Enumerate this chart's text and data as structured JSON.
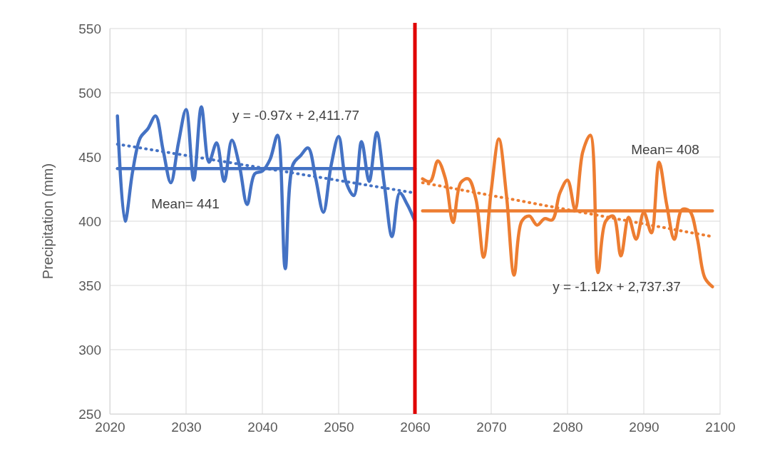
{
  "chart_data": {
    "type": "line",
    "ylabel": "Precipitation (mm)",
    "xlim": [
      2020,
      2100
    ],
    "ylim": [
      250,
      550
    ],
    "xticks": [
      2020,
      2030,
      2040,
      2050,
      2060,
      2070,
      2080,
      2090,
      2100
    ],
    "yticks": [
      250,
      300,
      350,
      400,
      450,
      500,
      550
    ],
    "grid": true,
    "marker": "none",
    "line_style": "solid",
    "series": [
      {
        "color": "#4472c4",
        "x": [
          2021,
          2022,
          2023,
          2024,
          2025,
          2026,
          2027,
          2028,
          2029,
          2030,
          2031,
          2032,
          2033,
          2034,
          2035,
          2036,
          2037,
          2038,
          2039,
          2040,
          2041,
          2042,
          2043,
          2044,
          2045,
          2046,
          2047,
          2048,
          2049,
          2050,
          2051,
          2052,
          2053,
          2054,
          2055,
          2056,
          2057,
          2058,
          2059,
          2060
        ],
        "values": [
          482,
          400,
          439,
          465,
          472,
          482,
          455,
          430,
          461,
          487,
          432,
          489,
          446,
          461,
          431,
          463,
          443,
          413,
          437,
          439,
          448,
          467,
          363,
          444,
          451,
          457,
          433,
          407,
          443,
          466,
          430,
          420,
          462,
          431,
          469,
          428,
          388,
          422,
          413,
          400
        ]
      },
      {
        "color": "#4472c4",
        "x": [
          2021,
          2060
        ],
        "values": [
          441,
          441
        ]
      },
      {
        "color": "#4472c4",
        "x": [
          2021,
          2060
        ],
        "values": [
          460,
          422
        ],
        "line_style": "dotted"
      },
      {
        "color": "#ed7d31",
        "x": [
          2061,
          2062,
          2063,
          2064,
          2065,
          2066,
          2067,
          2068,
          2069,
          2070,
          2071,
          2072,
          2073,
          2074,
          2075,
          2076,
          2077,
          2078,
          2079,
          2080,
          2081,
          2082,
          2083,
          2084,
          2085,
          2086,
          2087,
          2088,
          2089,
          2090,
          2091,
          2092,
          2093,
          2094,
          2095,
          2096,
          2097,
          2098,
          2099
        ],
        "values": [
          433,
          431,
          447,
          433,
          399,
          430,
          433,
          417,
          372,
          424,
          464,
          420,
          358,
          400,
          404,
          397,
          402,
          401,
          422,
          432,
          409,
          454,
          467,
          360,
          400,
          404,
          373,
          403,
          386,
          407,
          391,
          446,
          413,
          386,
          409,
          408,
          387,
          356,
          349
        ]
      },
      {
        "color": "#ed7d31",
        "x": [
          2061,
          2099
        ],
        "values": [
          408,
          408
        ]
      },
      {
        "color": "#ed7d31",
        "x": [
          2061,
          2099
        ],
        "values": [
          430,
          388
        ],
        "line_style": "dotted"
      }
    ],
    "ref_lines": [
      {
        "axis": "x",
        "value": 2060,
        "color": "#e00000"
      }
    ],
    "annotations": [
      "y = -0.97x + 2,411.77",
      "Mean= 441",
      "Mean= 408",
      "y = -1.12x + 2,737.37"
    ]
  }
}
